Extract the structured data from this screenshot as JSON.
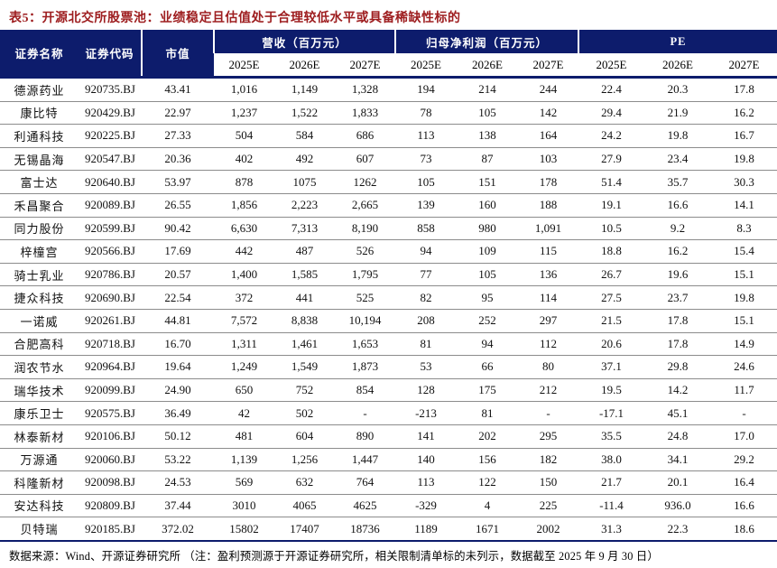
{
  "title": "表5：开源北交所股票池：业绩稳定且估值处于合理较低水平或具备稀缺性标的",
  "colors": {
    "title_text": "#9E1E20",
    "header_bg": "#0D1C6C",
    "header_text": "#FFFFFF",
    "row_divider": "#8C8C8C"
  },
  "table": {
    "group_headers": {
      "name": "证券名称",
      "code": "证券代码",
      "mktcap": "市值",
      "revenue": "营收（百万元）",
      "profit": "归母净利润（百万元）",
      "pe": "PE"
    },
    "year_headers": [
      "2025E",
      "2026E",
      "2027E"
    ],
    "rows": [
      [
        "德源药业",
        "920735.BJ",
        "43.41",
        "1,016",
        "1,149",
        "1,328",
        "194",
        "214",
        "244",
        "22.4",
        "20.3",
        "17.8"
      ],
      [
        "康比特",
        "920429.BJ",
        "22.97",
        "1,237",
        "1,522",
        "1,833",
        "78",
        "105",
        "142",
        "29.4",
        "21.9",
        "16.2"
      ],
      [
        "利通科技",
        "920225.BJ",
        "27.33",
        "504",
        "584",
        "686",
        "113",
        "138",
        "164",
        "24.2",
        "19.8",
        "16.7"
      ],
      [
        "无锡晶海",
        "920547.BJ",
        "20.36",
        "402",
        "492",
        "607",
        "73",
        "87",
        "103",
        "27.9",
        "23.4",
        "19.8"
      ],
      [
        "富士达",
        "920640.BJ",
        "53.97",
        "878",
        "1075",
        "1262",
        "105",
        "151",
        "178",
        "51.4",
        "35.7",
        "30.3"
      ],
      [
        "禾昌聚合",
        "920089.BJ",
        "26.55",
        "1,856",
        "2,223",
        "2,665",
        "139",
        "160",
        "188",
        "19.1",
        "16.6",
        "14.1"
      ],
      [
        "同力股份",
        "920599.BJ",
        "90.42",
        "6,630",
        "7,313",
        "8,190",
        "858",
        "980",
        "1,091",
        "10.5",
        "9.2",
        "8.3"
      ],
      [
        "梓橦宫",
        "920566.BJ",
        "17.69",
        "442",
        "487",
        "526",
        "94",
        "109",
        "115",
        "18.8",
        "16.2",
        "15.4"
      ],
      [
        "骑士乳业",
        "920786.BJ",
        "20.57",
        "1,400",
        "1,585",
        "1,795",
        "77",
        "105",
        "136",
        "26.7",
        "19.6",
        "15.1"
      ],
      [
        "捷众科技",
        "920690.BJ",
        "22.54",
        "372",
        "441",
        "525",
        "82",
        "95",
        "114",
        "27.5",
        "23.7",
        "19.8"
      ],
      [
        "一诺威",
        "920261.BJ",
        "44.81",
        "7,572",
        "8,838",
        "10,194",
        "208",
        "252",
        "297",
        "21.5",
        "17.8",
        "15.1"
      ],
      [
        "合肥高科",
        "920718.BJ",
        "16.70",
        "1,311",
        "1,461",
        "1,653",
        "81",
        "94",
        "112",
        "20.6",
        "17.8",
        "14.9"
      ],
      [
        "润农节水",
        "920964.BJ",
        "19.64",
        "1,249",
        "1,549",
        "1,873",
        "53",
        "66",
        "80",
        "37.1",
        "29.8",
        "24.6"
      ],
      [
        "瑞华技术",
        "920099.BJ",
        "24.90",
        "650",
        "752",
        "854",
        "128",
        "175",
        "212",
        "19.5",
        "14.2",
        "11.7"
      ],
      [
        "康乐卫士",
        "920575.BJ",
        "36.49",
        "42",
        "502",
        "-",
        "-213",
        "81",
        "-",
        "-17.1",
        "45.1",
        "-"
      ],
      [
        "林泰新材",
        "920106.BJ",
        "50.12",
        "481",
        "604",
        "890",
        "141",
        "202",
        "295",
        "35.5",
        "24.8",
        "17.0"
      ],
      [
        "万源通",
        "920060.BJ",
        "53.22",
        "1,139",
        "1,256",
        "1,447",
        "140",
        "156",
        "182",
        "38.0",
        "34.1",
        "29.2"
      ],
      [
        "科隆新材",
        "920098.BJ",
        "24.53",
        "569",
        "632",
        "764",
        "113",
        "122",
        "150",
        "21.7",
        "20.1",
        "16.4"
      ],
      [
        "安达科技",
        "920809.BJ",
        "37.44",
        "3010",
        "4065",
        "4625",
        "-329",
        "4",
        "225",
        "-11.4",
        "936.0",
        "16.6"
      ],
      [
        "贝特瑞",
        "920185.BJ",
        "372.02",
        "15802",
        "17407",
        "18736",
        "1189",
        "1671",
        "2002",
        "31.3",
        "22.3",
        "18.6"
      ]
    ]
  },
  "footer": "数据来源：Wind、开源证券研究所 （注：盈利预测源于开源证券研究所，相关限制清单标的未列示，数据截至 2025 年 9 月 30 日）"
}
